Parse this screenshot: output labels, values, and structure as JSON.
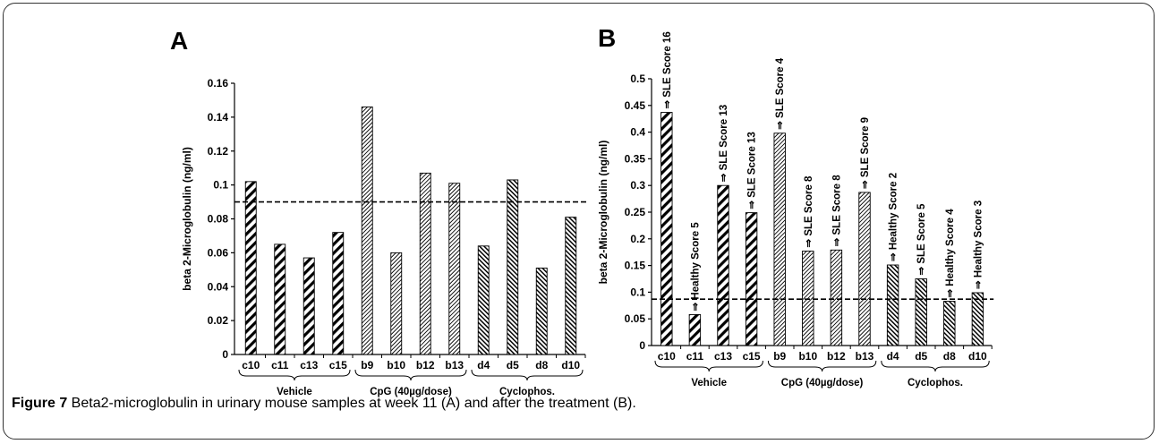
{
  "caption": {
    "label": "Figure 7",
    "text": " Beta2-microglobulin in urinary mouse samples at week 11 (A) and after the treatment (B)."
  },
  "colors": {
    "ink": "#000000",
    "background": "#ffffff"
  },
  "chart_data": [
    {
      "panel": "A",
      "type": "bar",
      "ylabel": "beta 2-Microglobulin  (ng/ml)",
      "xlabel": "",
      "ylim": [
        0,
        0.16
      ],
      "yticks": [
        0,
        0.02,
        0.04,
        0.06,
        0.08,
        0.1,
        0.12,
        0.14,
        0.16
      ],
      "ytick_labels": [
        "0",
        "0.02",
        "0.04",
        "0.06",
        "0.08",
        "0.1",
        "0.12",
        "0.14",
        "0.16"
      ],
      "categories": [
        "c10",
        "c11",
        "c13",
        "c15",
        "b9",
        "b10",
        "b12",
        "b13",
        "d4",
        "d5",
        "d8",
        "d10"
      ],
      "values": [
        0.102,
        0.065,
        0.057,
        0.072,
        0.146,
        0.06,
        0.107,
        0.101,
        0.064,
        0.103,
        0.051,
        0.081
      ],
      "patterns": [
        "diag",
        "diag",
        "diag",
        "diag",
        "dense",
        "dense",
        "dense",
        "dense",
        "rev",
        "rev",
        "rev",
        "rev"
      ],
      "threshold": 0.09,
      "groups": [
        {
          "label": "Vehicle",
          "start": 0,
          "end": 3
        },
        {
          "label": "CpG (40µg/dose)",
          "start": 4,
          "end": 7
        },
        {
          "label": "Cyclophos.",
          "start": 8,
          "end": 11
        }
      ],
      "annotations": []
    },
    {
      "panel": "B",
      "type": "bar",
      "ylabel": "beta 2-Microglobulin (ng/ml)",
      "xlabel": "",
      "ylim": [
        0,
        0.5
      ],
      "yticks": [
        0,
        0.05,
        0.1,
        0.15,
        0.2,
        0.25,
        0.3,
        0.35,
        0.4,
        0.45,
        0.5
      ],
      "ytick_labels": [
        "0",
        "0.05",
        "0.1",
        "0.15",
        "0.2",
        "0.25",
        "0.3",
        "0.35",
        "0.4",
        "0.45",
        "0.5"
      ],
      "categories": [
        "c10",
        "c11",
        "c13",
        "c15",
        "b9",
        "b10",
        "b12",
        "b13",
        "d4",
        "d5",
        "d8",
        "d10"
      ],
      "values": [
        0.437,
        0.058,
        0.3,
        0.249,
        0.398,
        0.177,
        0.179,
        0.287,
        0.151,
        0.125,
        0.083,
        0.099
      ],
      "patterns": [
        "diag",
        "diag",
        "diag",
        "diag",
        "dense",
        "dense",
        "dense",
        "dense",
        "rev",
        "rev",
        "rev",
        "rev"
      ],
      "threshold": 0.087,
      "groups": [
        {
          "label": "Vehicle",
          "start": 0,
          "end": 3
        },
        {
          "label": "CpG (40µg/dose)",
          "start": 4,
          "end": 7
        },
        {
          "label": "Cyclophos.",
          "start": 8,
          "end": 11
        }
      ],
      "annotations": [
        "⇒ SLE Score 16",
        "⇒ Healthy Score 5",
        "⇒ SLE Score 13",
        "⇒ SLE Score 13",
        "⇒ SLE Score 4",
        "⇒ SLE Score 8",
        "⇒ SLE Score 8",
        "⇒ SLE Score 9",
        "⇒ Healthy Score 2",
        "⇒ SLE Score 5",
        "⇒ Healthy Score 4",
        "⇒ Healthy Score 3"
      ]
    }
  ]
}
